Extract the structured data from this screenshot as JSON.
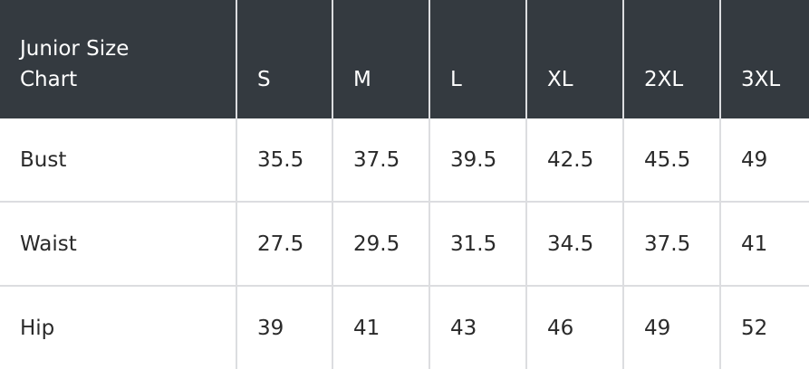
{
  "table": {
    "title_line1": "Junior Size",
    "title_line2": "Chart",
    "sizes": [
      "S",
      "M",
      "L",
      "XL",
      "2XL",
      "3XL"
    ],
    "rows": [
      {
        "label": "Bust",
        "values": [
          "35.5",
          "37.5",
          "39.5",
          "42.5",
          "45.5",
          "49"
        ]
      },
      {
        "label": "Waist",
        "values": [
          "27.5",
          "29.5",
          "31.5",
          "34.5",
          "37.5",
          "41"
        ]
      },
      {
        "label": "Hip",
        "values": [
          "39",
          "41",
          "43",
          "46",
          "49",
          "52"
        ]
      }
    ]
  },
  "colors": {
    "header_bg": "#343a40",
    "border": "#dcdde0"
  }
}
